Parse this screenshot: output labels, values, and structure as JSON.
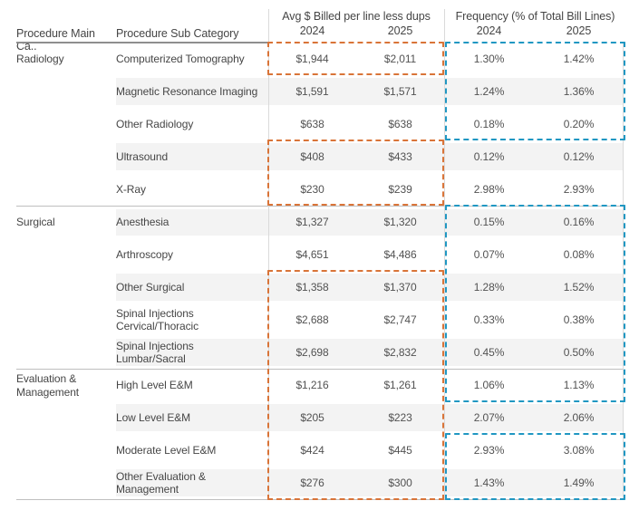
{
  "table": {
    "col_headers": {
      "main_category": "Procedure Main Ca..",
      "sub_category": "Procedure Sub Category",
      "avg_group": "Avg $ Billed per line less dups",
      "freq_group": "Frequency (% of Total Bill Lines)",
      "year_1": "2024",
      "year_2": "2025"
    },
    "rows": [
      {
        "main": "Radiology",
        "sub": "Computerized Tomography",
        "avg_2024": "$1,944",
        "avg_2025": "$2,011",
        "freq_2024": "1.30%",
        "freq_2025": "1.42%"
      },
      {
        "main": "",
        "sub": "Magnetic Resonance Imaging",
        "avg_2024": "$1,591",
        "avg_2025": "$1,571",
        "freq_2024": "1.24%",
        "freq_2025": "1.36%"
      },
      {
        "main": "",
        "sub": "Other Radiology",
        "avg_2024": "$638",
        "avg_2025": "$638",
        "freq_2024": "0.18%",
        "freq_2025": "0.20%"
      },
      {
        "main": "",
        "sub": "Ultrasound",
        "avg_2024": "$408",
        "avg_2025": "$433",
        "freq_2024": "0.12%",
        "freq_2025": "0.12%"
      },
      {
        "main": "",
        "sub": "X-Ray",
        "avg_2024": "$230",
        "avg_2025": "$239",
        "freq_2024": "2.98%",
        "freq_2025": "2.93%"
      },
      {
        "main": "Surgical",
        "sub": "Anesthesia",
        "avg_2024": "$1,327",
        "avg_2025": "$1,320",
        "freq_2024": "0.15%",
        "freq_2025": "0.16%"
      },
      {
        "main": "",
        "sub": "Arthroscopy",
        "avg_2024": "$4,651",
        "avg_2025": "$4,486",
        "freq_2024": "0.07%",
        "freq_2025": "0.08%"
      },
      {
        "main": "",
        "sub": "Other Surgical",
        "avg_2024": "$1,358",
        "avg_2025": "$1,370",
        "freq_2024": "1.28%",
        "freq_2025": "1.52%"
      },
      {
        "main": "",
        "sub": "Spinal Injections Cervical/Thoracic",
        "avg_2024": "$2,688",
        "avg_2025": "$2,747",
        "freq_2024": "0.33%",
        "freq_2025": "0.38%"
      },
      {
        "main": "",
        "sub": "Spinal Injections Lumbar/Sacral",
        "avg_2024": "$2,698",
        "avg_2025": "$2,832",
        "freq_2024": "0.45%",
        "freq_2025": "0.50%"
      },
      {
        "main": "Evaluation & Management",
        "sub": "High Level E&M",
        "avg_2024": "$1,216",
        "avg_2025": "$1,261",
        "freq_2024": "1.06%",
        "freq_2025": "1.13%"
      },
      {
        "main": "",
        "sub": "Low Level E&M",
        "avg_2024": "$205",
        "avg_2025": "$223",
        "freq_2024": "2.07%",
        "freq_2025": "2.06%"
      },
      {
        "main": "",
        "sub": "Moderate Level E&M",
        "avg_2024": "$424",
        "avg_2025": "$445",
        "freq_2024": "2.93%",
        "freq_2025": "3.08%"
      },
      {
        "main": "",
        "sub": "Other Evaluation & Management",
        "avg_2024": "$276",
        "avg_2025": "$300",
        "freq_2024": "1.43%",
        "freq_2025": "1.49%"
      }
    ]
  },
  "annotations": {
    "avg_highlight_color": "#d97438",
    "freq_highlight_color": "#2097c2",
    "avg_highlighted_row_ranges": [
      "Computerized Tomography",
      "Ultrasound to X-Ray",
      "Other Surgical to Other Evaluation & Management"
    ],
    "freq_highlighted_row_ranges": [
      "Computerized Tomography to Other Radiology",
      "Anesthesia to High Level E&M",
      "Moderate Level E&M to Other Evaluation & Management"
    ]
  },
  "chart_data": {
    "type": "table",
    "title": "",
    "columns": [
      "Procedure Main Category",
      "Procedure Sub Category",
      "Avg $ Billed per line less dups 2024",
      "Avg $ Billed per line less dups 2025",
      "Frequency (% of Total Bill Lines) 2024",
      "Frequency (% of Total Bill Lines) 2025"
    ],
    "rows": [
      [
        "Radiology",
        "Computerized Tomography",
        1944,
        2011,
        1.3,
        1.42
      ],
      [
        "Radiology",
        "Magnetic Resonance Imaging",
        1591,
        1571,
        1.24,
        1.36
      ],
      [
        "Radiology",
        "Other Radiology",
        638,
        638,
        0.18,
        0.2
      ],
      [
        "Radiology",
        "Ultrasound",
        408,
        433,
        0.12,
        0.12
      ],
      [
        "Radiology",
        "X-Ray",
        230,
        239,
        2.98,
        2.93
      ],
      [
        "Surgical",
        "Anesthesia",
        1327,
        1320,
        0.15,
        0.16
      ],
      [
        "Surgical",
        "Arthroscopy",
        4651,
        4486,
        0.07,
        0.08
      ],
      [
        "Surgical",
        "Other Surgical",
        1358,
        1370,
        1.28,
        1.52
      ],
      [
        "Surgical",
        "Spinal Injections Cervical/Thoracic",
        2688,
        2747,
        0.33,
        0.38
      ],
      [
        "Surgical",
        "Spinal Injections Lumbar/Sacral",
        2698,
        2832,
        0.45,
        0.5
      ],
      [
        "Evaluation & Management",
        "High Level E&M",
        1216,
        1261,
        1.06,
        1.13
      ],
      [
        "Evaluation & Management",
        "Low Level E&M",
        205,
        223,
        2.07,
        2.06
      ],
      [
        "Evaluation & Management",
        "Moderate Level E&M",
        424,
        445,
        2.93,
        3.08
      ],
      [
        "Evaluation & Management",
        "Other Evaluation & Management",
        276,
        300,
        1.43,
        1.49
      ]
    ],
    "units": {
      "avg_billed": "USD",
      "frequency": "percent"
    }
  }
}
